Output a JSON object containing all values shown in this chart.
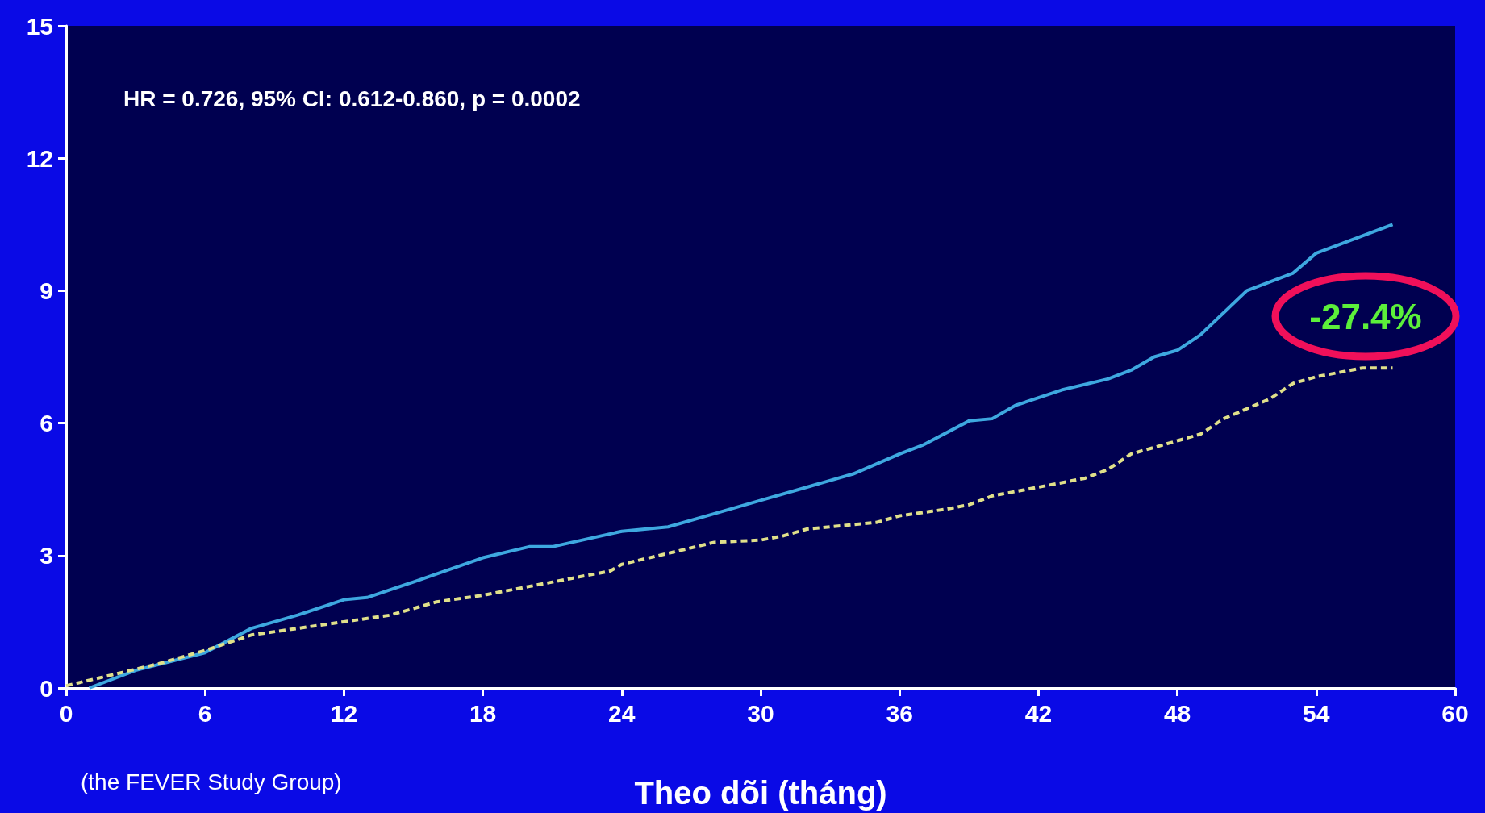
{
  "chart_data": {
    "type": "line",
    "xlabel": "Theo dõi (tháng)",
    "xlim": [
      0,
      60
    ],
    "xticks": [
      0,
      6,
      12,
      18,
      24,
      30,
      36,
      42,
      48,
      54,
      60
    ],
    "ylim": [
      0,
      15
    ],
    "yticks": [
      0,
      3,
      6,
      9,
      12,
      15
    ],
    "grid": false,
    "marker": "none",
    "annotations": [
      "HR = 0.726, 95% CI: 0.612-0.860, p = 0.0002",
      "(the FEVER Study Group)",
      "-27.4%"
    ],
    "series": [
      {
        "color": "#3ea8e0",
        "line_style": "solid",
        "x": [
          1,
          3,
          6,
          8,
          10,
          12,
          13,
          15,
          18,
          20,
          21,
          24,
          26,
          28,
          30,
          32,
          34,
          36,
          37,
          39,
          40,
          41,
          43,
          45,
          46,
          47,
          48,
          49,
          50,
          51,
          53,
          54,
          57.3
        ],
        "values": [
          0,
          0.4,
          0.8,
          1.35,
          1.65,
          2,
          2.05,
          2.4,
          2.95,
          3.2,
          3.2,
          3.55,
          3.65,
          3.95,
          4.25,
          4.55,
          4.85,
          5.3,
          5.5,
          6.05,
          6.1,
          6.4,
          6.75,
          7,
          7.2,
          7.5,
          7.65,
          8,
          8.5,
          9,
          9.4,
          9.85,
          10.5
        ]
      },
      {
        "color": "#e0e08a",
        "line_style": "dashed",
        "x": [
          0,
          2,
          4,
          6,
          8,
          10,
          12,
          14,
          16,
          18,
          20,
          22,
          23.5,
          24,
          26,
          28,
          30,
          31,
          32,
          34,
          35,
          36,
          38,
          39,
          40,
          42,
          44,
          45,
          46,
          48,
          49,
          50,
          52,
          53,
          54,
          55,
          56,
          57.3
        ],
        "values": [
          0.05,
          0.3,
          0.55,
          0.85,
          1.2,
          1.35,
          1.5,
          1.65,
          1.95,
          2.1,
          2.3,
          2.5,
          2.65,
          2.8,
          3.05,
          3.3,
          3.35,
          3.45,
          3.6,
          3.7,
          3.75,
          3.9,
          4.05,
          4.15,
          4.35,
          4.55,
          4.75,
          4.95,
          5.3,
          5.6,
          5.75,
          6.1,
          6.55,
          6.9,
          7.05,
          7.15,
          7.25,
          7.25
        ]
      }
    ]
  }
}
